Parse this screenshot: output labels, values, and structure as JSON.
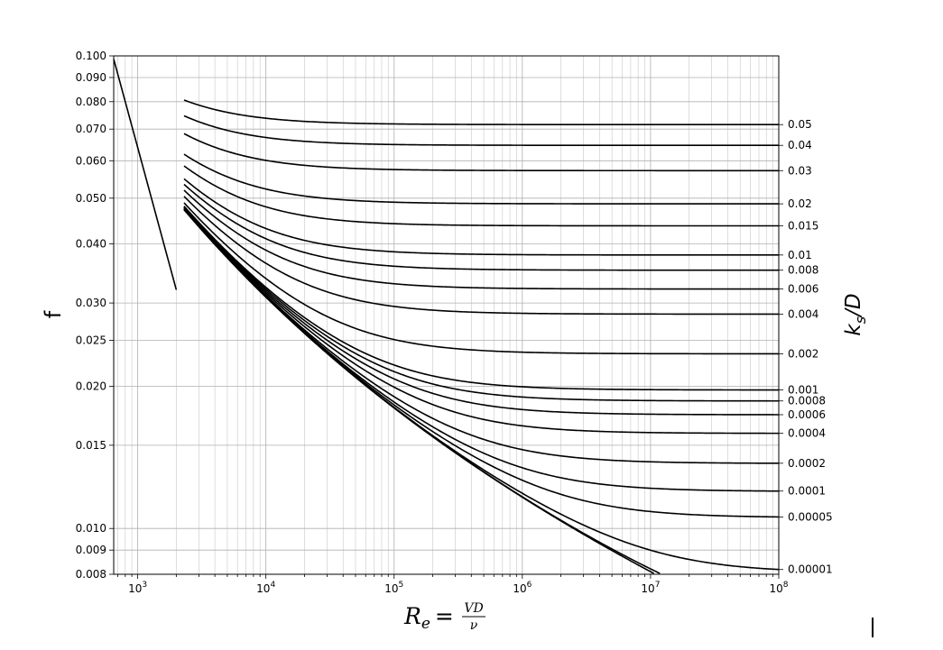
{
  "chart_data": {
    "type": "line",
    "x_scale": "log",
    "y_scale": "log",
    "xlim": [
      650,
      100000000
    ],
    "ylim": [
      0.008,
      0.1
    ],
    "grid": true,
    "ylabel": "f",
    "xlabel": {
      "base": "R",
      "sub": "e",
      "equals": "=",
      "num": "VD",
      "den": "ν"
    },
    "right_label": {
      "base": "k",
      "sub": "s",
      "rest": "/D"
    },
    "x_ticks": [
      {
        "base": "10",
        "exp": "3",
        "value": 1000
      },
      {
        "base": "10",
        "exp": "4",
        "value": 10000
      },
      {
        "base": "10",
        "exp": "5",
        "value": 100000
      },
      {
        "base": "10",
        "exp": "6",
        "value": 1000000
      },
      {
        "base": "10",
        "exp": "7",
        "value": 10000000
      },
      {
        "base": "10",
        "exp": "8",
        "value": 100000000
      }
    ],
    "y_ticks": [
      {
        "label": "0.100",
        "value": 0.1
      },
      {
        "label": "0.090",
        "value": 0.09
      },
      {
        "label": "0.080",
        "value": 0.08
      },
      {
        "label": "0.070",
        "value": 0.07
      },
      {
        "label": "0.060",
        "value": 0.06
      },
      {
        "label": "0.050",
        "value": 0.05
      },
      {
        "label": "0.040",
        "value": 0.04
      },
      {
        "label": "0.030",
        "value": 0.03
      },
      {
        "label": "0.025",
        "value": 0.025
      },
      {
        "label": "0.020",
        "value": 0.02
      },
      {
        "label": "0.015",
        "value": 0.015
      },
      {
        "label": "0.010",
        "value": 0.01
      },
      {
        "label": "0.009",
        "value": 0.009
      },
      {
        "label": "0.008",
        "value": 0.008
      }
    ],
    "laminar": {
      "formula": "f = 64/Re",
      "x": [
        650,
        2000
      ]
    },
    "turbulent": {
      "formula": "Colebrook",
      "x_range": [
        2300,
        100000000
      ]
    },
    "series": [
      {
        "label": "0.05",
        "ks_D": 0.05
      },
      {
        "label": "0.04",
        "ks_D": 0.04
      },
      {
        "label": "0.03",
        "ks_D": 0.03
      },
      {
        "label": "0.02",
        "ks_D": 0.02
      },
      {
        "label": "0.015",
        "ks_D": 0.015
      },
      {
        "label": "0.01",
        "ks_D": 0.01
      },
      {
        "label": "0.008",
        "ks_D": 0.008
      },
      {
        "label": "0.006",
        "ks_D": 0.006
      },
      {
        "label": "0.004",
        "ks_D": 0.004
      },
      {
        "label": "0.002",
        "ks_D": 0.002
      },
      {
        "label": "0.001",
        "ks_D": 0.001
      },
      {
        "label": "0.0008",
        "ks_D": 0.0008
      },
      {
        "label": "0.0006",
        "ks_D": 0.0006
      },
      {
        "label": "0.0004",
        "ks_D": 0.0004
      },
      {
        "label": "0.0002",
        "ks_D": 0.0002
      },
      {
        "label": "0.0001",
        "ks_D": 0.0001
      },
      {
        "label": "0.00005",
        "ks_D": 5e-05
      },
      {
        "label": "0.00001",
        "ks_D": 1e-05
      },
      {
        "label": "",
        "ks_D": 1e-06
      },
      {
        "label": "",
        "ks_D": 0
      }
    ]
  }
}
